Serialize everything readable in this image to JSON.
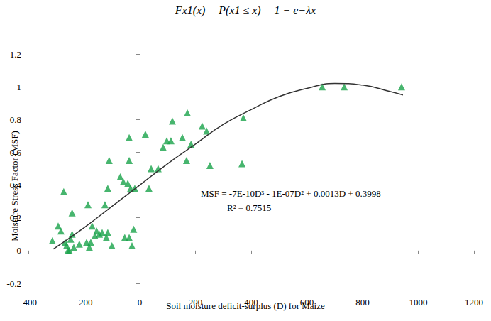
{
  "chart_data": {
    "type": "scatter",
    "title": "Fx1(x) = P(x1 ≤ x) = 1 − e−λx",
    "x_label": "Soil moisture deficit-surplus (D) for Maize",
    "y_label": "Moisture Stress Factor (MSF)",
    "annotations": [
      "MSF = -7E-10D³ - 1E-07D² + 0.0013D + 0.3998",
      "R² = 0.7515"
    ],
    "xlim": [
      -400,
      1200
    ],
    "xticks": [
      -400,
      -200,
      0,
      200,
      400,
      600,
      800,
      1000,
      1200
    ],
    "ylim": [
      -0.2,
      1.2
    ],
    "yticks": [
      -0.2,
      0,
      0.2,
      0.4,
      0.6,
      0.8,
      1,
      1.2
    ],
    "grid": false,
    "series": [
      {
        "type": "scatter",
        "color": "#19a24a",
        "marker": "triangle",
        "x": [
          -314,
          -293,
          -283,
          -273,
          -268,
          -263,
          -258,
          -253,
          -248,
          -243,
          -243,
          -237,
          -217,
          -191,
          -186,
          -181,
          -176,
          -171,
          -161,
          -155,
          -145,
          -135,
          -125,
          -120,
          -115,
          -115,
          -110,
          -100,
          -70,
          -59,
          -54,
          -43,
          -38,
          -38,
          -38,
          -33,
          -28,
          -22,
          -18,
          20,
          33,
          41,
          66,
          84,
          97,
          112,
          117,
          153,
          168,
          171,
          184,
          224,
          240,
          252,
          367,
          372,
          655,
          734,
          940
        ],
        "values": [
          0.06,
          0.15,
          0.12,
          0.36,
          0.05,
          0.03,
          0.0,
          0.0,
          0.07,
          0.1,
          0.23,
          0.02,
          0.04,
          0.05,
          0.28,
          0.02,
          0.05,
          0.15,
          0.09,
          0.12,
          0.1,
          0.11,
          0.28,
          0.08,
          0.11,
          0.38,
          0.55,
          0.03,
          0.45,
          0.42,
          0.08,
          0.41,
          0.69,
          0.08,
          0.55,
          0.38,
          0.03,
          0.13,
          0.38,
          0.71,
          0.38,
          0.5,
          0.5,
          0.63,
          0.67,
          0.67,
          0.79,
          0.69,
          0.55,
          0.84,
          0.65,
          0.76,
          0.73,
          0.52,
          0.53,
          0.81,
          1.0,
          1.0,
          1.0
        ]
      },
      {
        "type": "line",
        "color": "#333333",
        "line_style": "solid",
        "x": [
          -310,
          -200,
          -100,
          0,
          100,
          200,
          300,
          400,
          500,
          600,
          700,
          800,
          900,
          945
        ],
        "values": [
          0.01,
          0.14,
          0.27,
          0.4,
          0.53,
          0.65,
          0.77,
          0.86,
          0.94,
          0.99,
          1.02,
          1.01,
          0.97,
          0.95
        ]
      }
    ]
  }
}
